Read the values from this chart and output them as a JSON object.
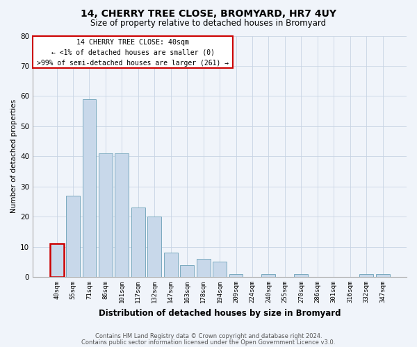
{
  "title": "14, CHERRY TREE CLOSE, BROMYARD, HR7 4UY",
  "subtitle": "Size of property relative to detached houses in Bromyard",
  "xlabel": "Distribution of detached houses by size in Bromyard",
  "ylabel": "Number of detached properties",
  "categories": [
    "40sqm",
    "55sqm",
    "71sqm",
    "86sqm",
    "101sqm",
    "117sqm",
    "132sqm",
    "147sqm",
    "163sqm",
    "178sqm",
    "194sqm",
    "209sqm",
    "224sqm",
    "240sqm",
    "255sqm",
    "270sqm",
    "286sqm",
    "301sqm",
    "316sqm",
    "332sqm",
    "347sqm"
  ],
  "values": [
    11,
    27,
    59,
    41,
    41,
    23,
    20,
    8,
    4,
    6,
    5,
    1,
    0,
    1,
    0,
    1,
    0,
    0,
    0,
    1,
    1
  ],
  "bar_color": "#c8d8ea",
  "bar_edge_color": "#7aaabf",
  "highlight_index": 0,
  "highlight_edge_color": "#cc0000",
  "ylim": [
    0,
    80
  ],
  "yticks": [
    0,
    10,
    20,
    30,
    40,
    50,
    60,
    70,
    80
  ],
  "annotation_box_color": "#ffffff",
  "annotation_box_edge": "#cc0000",
  "annotation_line1": "14 CHERRY TREE CLOSE: 40sqm",
  "annotation_line2": "← <1% of detached houses are smaller (0)",
  "annotation_line3": ">99% of semi-detached houses are larger (261) →",
  "footnote1": "Contains HM Land Registry data © Crown copyright and database right 2024.",
  "footnote2": "Contains public sector information licensed under the Open Government Licence v3.0.",
  "background_color": "#f0f4fa",
  "grid_color": "#c8d4e4"
}
